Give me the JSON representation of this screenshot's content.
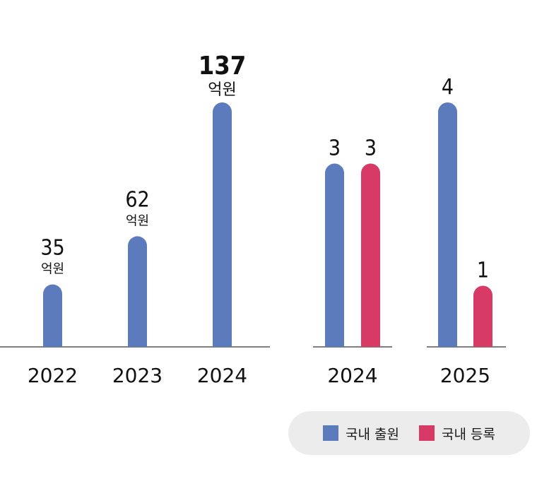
{
  "colors": {
    "blue": "#5b7bbd",
    "pink": "#d73a64",
    "axis": "#555555",
    "text": "#111111"
  },
  "chart_data": [
    {
      "type": "bar",
      "categories": [
        "2022",
        "2023",
        "2024"
      ],
      "series": [
        {
          "values": [
            35,
            62,
            137
          ]
        }
      ],
      "value_labels": [
        "35",
        "62",
        "137"
      ],
      "unit": "억원",
      "ylim": [
        0,
        137
      ]
    },
    {
      "type": "bar",
      "categories": [
        "2024",
        "2025"
      ],
      "series": [
        {
          "name": "국내 출원",
          "values": [
            3,
            4
          ],
          "value_labels": [
            "3",
            "4"
          ]
        },
        {
          "name": "국내 등록",
          "values": [
            3,
            1
          ],
          "value_labels": [
            "3",
            "1"
          ]
        }
      ],
      "ylim": [
        0,
        4
      ]
    }
  ],
  "legend": [
    {
      "label": "국내 출원",
      "color": "#5b7bbd"
    },
    {
      "label": "국내 등록",
      "color": "#d73a64"
    }
  ]
}
